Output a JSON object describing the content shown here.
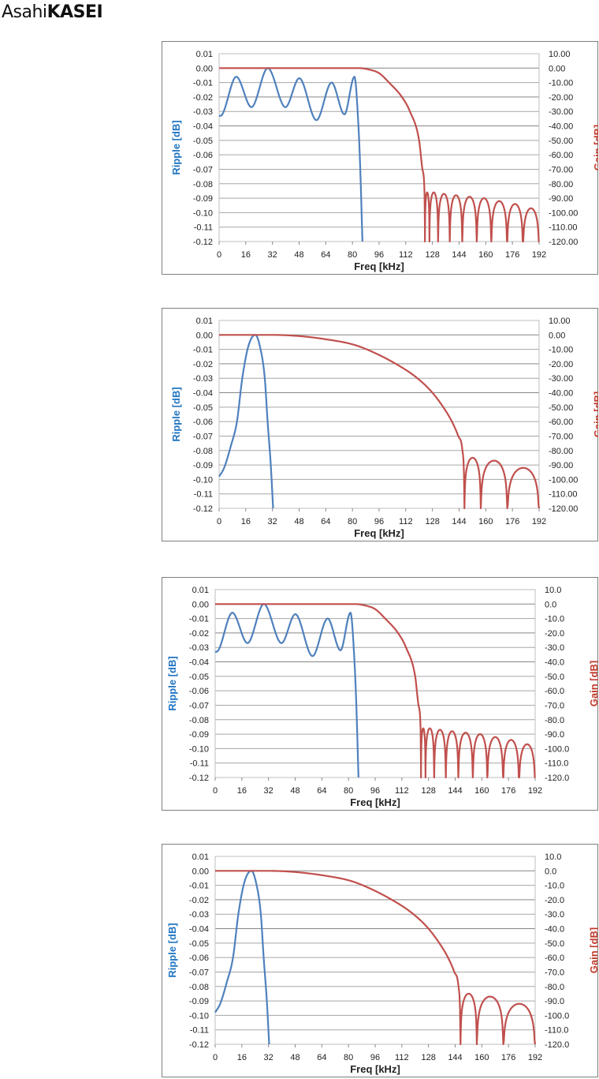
{
  "logo": {
    "part1": "Asahi",
    "part2": "KASEI"
  },
  "colors": {
    "ripple": "#4F81BD",
    "gain": "#C0504D",
    "ripple_label": "#1F74C2",
    "gain_label": "#C0392B",
    "grid": "#A6A6A6",
    "frame": "#7F7F7F"
  },
  "chart_data": [
    {
      "type": "line",
      "xlabel": "Freq [kHz]",
      "ylabel": "Ripple [dB]",
      "y2label": "Gain [dB]",
      "xlim": [
        0,
        192
      ],
      "ylim": [
        -0.12,
        0.01
      ],
      "y2lim": [
        -120,
        10
      ],
      "x_ticks": [
        "0",
        "16",
        "32",
        "48",
        "64",
        "80",
        "96",
        "112",
        "128",
        "144",
        "160",
        "176",
        "192"
      ],
      "y_ticks": [
        "0.01",
        "0.00",
        "-0.01",
        "-0.02",
        "-0.03",
        "-0.04",
        "-0.05",
        "-0.06",
        "-0.07",
        "-0.08",
        "-0.09",
        "-0.10",
        "-0.11",
        "-0.12"
      ],
      "y2_ticks": [
        "10.00",
        "0.00",
        "-10.00",
        "-20.00",
        "-30.00",
        "-40.00",
        "-50.00",
        "-60.00",
        "-70.00",
        "-80.00",
        "-90.00",
        "-100.00",
        "-110.00",
        "-120.00"
      ],
      "grid": true,
      "series": [
        {
          "name": "Ripple",
          "axis": "left",
          "points": [
            [
              0,
              -0.033
            ],
            [
              0.8,
              -0.033
            ],
            [
              10.3,
              -0.006
            ],
            [
              19.4,
              -0.027
            ],
            [
              29.2,
              0
            ],
            [
              39.8,
              -0.027
            ],
            [
              48.1,
              -0.007
            ],
            [
              58.4,
              -0.036
            ],
            [
              67.5,
              -0.01
            ],
            [
              75.2,
              -0.032
            ],
            [
              81.2,
              -0.006
            ],
            [
              83.6,
              -0.04
            ],
            [
              84.7,
              -0.07
            ],
            [
              86,
              -0.12
            ]
          ]
        },
        {
          "name": "Gain",
          "axis": "right",
          "points": [
            [
              0,
              0
            ],
            [
              84,
              0
            ],
            [
              90,
              -1
            ],
            [
              96,
              -3.5
            ],
            [
              102,
              -10
            ],
            [
              110,
              -20.5
            ],
            [
              114.5,
              -30
            ],
            [
              120,
              -50
            ],
            [
              122,
              -70
            ],
            [
              123.3,
              -88
            ],
            [
              123.5,
              -112
            ]
          ],
          "stopband_nulls": [
            123.5,
            126.2,
            131.4,
            138.4,
            145.9,
            154.6,
            163.3,
            172.8,
            182.3,
            192
          ],
          "stopband_peaks": [
            -86,
            -86,
            -87,
            -88,
            -89,
            -90,
            -92,
            -94,
            -97
          ]
        }
      ]
    },
    {
      "type": "line",
      "xlabel": "Freq [kHz]",
      "ylabel": "Ripple [dB]",
      "y2label": "Gain [dB]",
      "xlim": [
        0,
        192
      ],
      "ylim": [
        -0.12,
        0.01
      ],
      "y2lim": [
        -120,
        10
      ],
      "x_ticks": [
        "0",
        "16",
        "32",
        "48",
        "64",
        "80",
        "96",
        "112",
        "128",
        "144",
        "160",
        "176",
        "192"
      ],
      "y_ticks": [
        "0.01",
        "0.00",
        "-0.01",
        "-0.02",
        "-0.03",
        "-0.04",
        "-0.05",
        "-0.06",
        "-0.07",
        "-0.08",
        "-0.09",
        "-0.10",
        "-0.11",
        "-0.12"
      ],
      "y2_ticks": [
        "10.00",
        "0.00",
        "-10.00",
        "-20.00",
        "-30.00",
        "-40.00",
        "-50.00",
        "-60.00",
        "-70.00",
        "-80.00",
        "-90.00",
        "-100.00",
        "-110.00",
        "-120.00"
      ],
      "grid": true,
      "series": [
        {
          "name": "Ripple",
          "axis": "left",
          "points": [
            [
              0,
              -0.098
            ],
            [
              3,
              -0.092
            ],
            [
              7,
              -0.077
            ],
            [
              10.7,
              -0.06
            ],
            [
              13.9,
              -0.03
            ],
            [
              17.5,
              -0.008
            ],
            [
              21.7,
              0
            ],
            [
              24.5,
              -0.008
            ],
            [
              27.4,
              -0.03
            ],
            [
              29.1,
              -0.06
            ],
            [
              31,
              -0.09
            ],
            [
              32.4,
              -0.12
            ]
          ]
        },
        {
          "name": "Gain",
          "axis": "right",
          "points": [
            [
              0,
              0
            ],
            [
              32,
              0
            ],
            [
              48,
              -0.8
            ],
            [
              64,
              -3
            ],
            [
              80,
              -6.5
            ],
            [
              88.6,
              -10
            ],
            [
              106,
              -20
            ],
            [
              119,
              -30
            ],
            [
              128,
              -40
            ],
            [
              134.5,
              -50
            ],
            [
              139.7,
              -60
            ],
            [
              143.5,
              -70
            ],
            [
              146,
              -80
            ],
            [
              147,
              -100
            ],
            [
              147.2,
              -118
            ]
          ],
          "stopband_nulls": [
            147.2,
            157,
            172.9,
            192
          ],
          "stopband_peaks": [
            -85,
            -87,
            -92
          ]
        }
      ]
    },
    {
      "type": "line",
      "xlabel": "Freq [kHz]",
      "ylabel": "Ripple [dB]",
      "y2label": "Gain [dB]",
      "xlim": [
        0,
        192
      ],
      "ylim": [
        -0.12,
        0.01
      ],
      "y2lim": [
        -120,
        10
      ],
      "x_ticks": [
        "0",
        "16",
        "32",
        "48",
        "64",
        "80",
        "96",
        "112",
        "128",
        "144",
        "160",
        "176",
        "192"
      ],
      "y_ticks": [
        "0.01",
        "0.00",
        "-0.01",
        "-0.02",
        "-0.03",
        "-0.04",
        "-0.05",
        "-0.06",
        "-0.07",
        "-0.08",
        "-0.09",
        "-0.10",
        "-0.11",
        "-0.12"
      ],
      "y2_ticks": [
        "10.0",
        "0.0",
        "-10.0",
        "-20.0",
        "-30.0",
        "-40.0",
        "-50.0",
        "-60.0",
        "-70.0",
        "-80.0",
        "-90.0",
        "-100.0",
        "-110.0",
        "-120.0"
      ],
      "grid": true,
      "series": [
        {
          "name": "Ripple",
          "axis": "left",
          "points": [
            [
              0,
              -0.033
            ],
            [
              0.8,
              -0.033
            ],
            [
              10.3,
              -0.006
            ],
            [
              19.4,
              -0.027
            ],
            [
              29.2,
              0
            ],
            [
              39.8,
              -0.027
            ],
            [
              48.1,
              -0.007
            ],
            [
              58.4,
              -0.036
            ],
            [
              67.5,
              -0.01
            ],
            [
              75.2,
              -0.032
            ],
            [
              81.2,
              -0.006
            ],
            [
              83.6,
              -0.04
            ],
            [
              84.7,
              -0.07
            ],
            [
              86,
              -0.12
            ]
          ]
        },
        {
          "name": "Gain",
          "axis": "right",
          "points": [
            [
              0,
              0
            ],
            [
              84,
              0
            ],
            [
              90,
              -1
            ],
            [
              96,
              -3.5
            ],
            [
              102,
              -10
            ],
            [
              110,
              -20.5
            ],
            [
              114.5,
              -30
            ],
            [
              120,
              -50
            ],
            [
              122,
              -70
            ],
            [
              123.3,
              -88
            ],
            [
              123.5,
              -112
            ]
          ],
          "stopband_nulls": [
            123.5,
            126.2,
            131.4,
            138.4,
            145.9,
            154.6,
            163.3,
            172.8,
            182.3,
            192
          ],
          "stopband_peaks": [
            -86,
            -86,
            -87,
            -88,
            -89,
            -90,
            -92,
            -94,
            -97
          ]
        }
      ]
    },
    {
      "type": "line",
      "xlabel": "Freq [kHz]",
      "ylabel": "Ripple [dB]",
      "y2label": "Gain [dB]",
      "xlim": [
        0,
        192
      ],
      "ylim": [
        -0.12,
        0.01
      ],
      "y2lim": [
        -120,
        10
      ],
      "x_ticks": [
        "0",
        "16",
        "32",
        "48",
        "64",
        "80",
        "96",
        "112",
        "128",
        "144",
        "160",
        "176",
        "192"
      ],
      "y_ticks": [
        "0.01",
        "0.00",
        "-0.01",
        "-0.02",
        "-0.03",
        "-0.04",
        "-0.05",
        "-0.06",
        "-0.07",
        "-0.08",
        "-0.09",
        "-0.10",
        "-0.11",
        "-0.12"
      ],
      "y2_ticks": [
        "10.0",
        "0.0",
        "-10.0",
        "-20.0",
        "-30.0",
        "-40.0",
        "-50.0",
        "-60.0",
        "-70.0",
        "-80.0",
        "-90.0",
        "-100.0",
        "-110.0",
        "-120.0"
      ],
      "grid": true,
      "series": [
        {
          "name": "Ripple",
          "axis": "left",
          "points": [
            [
              0,
              -0.098
            ],
            [
              3,
              -0.092
            ],
            [
              7,
              -0.077
            ],
            [
              10.7,
              -0.06
            ],
            [
              13.9,
              -0.03
            ],
            [
              17.5,
              -0.008
            ],
            [
              21.7,
              0
            ],
            [
              24.5,
              -0.008
            ],
            [
              27.4,
              -0.03
            ],
            [
              29.1,
              -0.06
            ],
            [
              31,
              -0.09
            ],
            [
              32.4,
              -0.12
            ]
          ]
        },
        {
          "name": "Gain",
          "axis": "right",
          "points": [
            [
              0,
              0
            ],
            [
              32,
              0
            ],
            [
              48,
              -0.8
            ],
            [
              64,
              -3
            ],
            [
              80,
              -6.5
            ],
            [
              88.6,
              -10
            ],
            [
              106,
              -20
            ],
            [
              119,
              -30
            ],
            [
              128,
              -40
            ],
            [
              134.5,
              -50
            ],
            [
              139.7,
              -60
            ],
            [
              143.5,
              -70
            ],
            [
              146,
              -80
            ],
            [
              147,
              -100
            ],
            [
              147.2,
              -118
            ]
          ],
          "stopband_nulls": [
            147.2,
            157,
            172.9,
            192
          ],
          "stopband_peaks": [
            -85,
            -87,
            -92
          ]
        }
      ]
    }
  ]
}
